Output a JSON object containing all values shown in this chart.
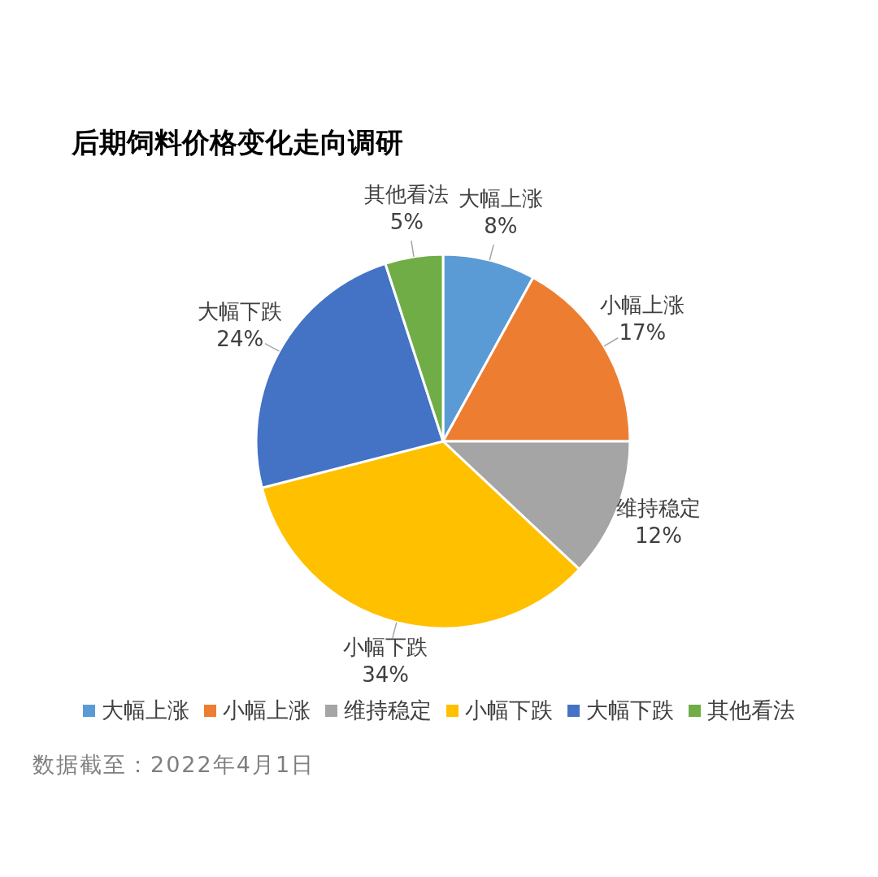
{
  "chart_data": {
    "type": "pie",
    "title": "后期饲料价格变化走向调研",
    "categories": [
      "大幅上涨",
      "小幅上涨",
      "维持稳定",
      "小幅下跌",
      "大幅下跌",
      "其他看法"
    ],
    "values": [
      8,
      17,
      12,
      34,
      24,
      5
    ],
    "value_labels": [
      "8%",
      "17%",
      "12%",
      "34%",
      "24%",
      "5%"
    ],
    "colors": [
      "#5b9bd5",
      "#ed7d31",
      "#a5a5a5",
      "#ffc000",
      "#4472c4",
      "#70ad47"
    ],
    "legend": "bottom",
    "annotations": [
      "数据截至：2022年4月1日"
    ]
  }
}
